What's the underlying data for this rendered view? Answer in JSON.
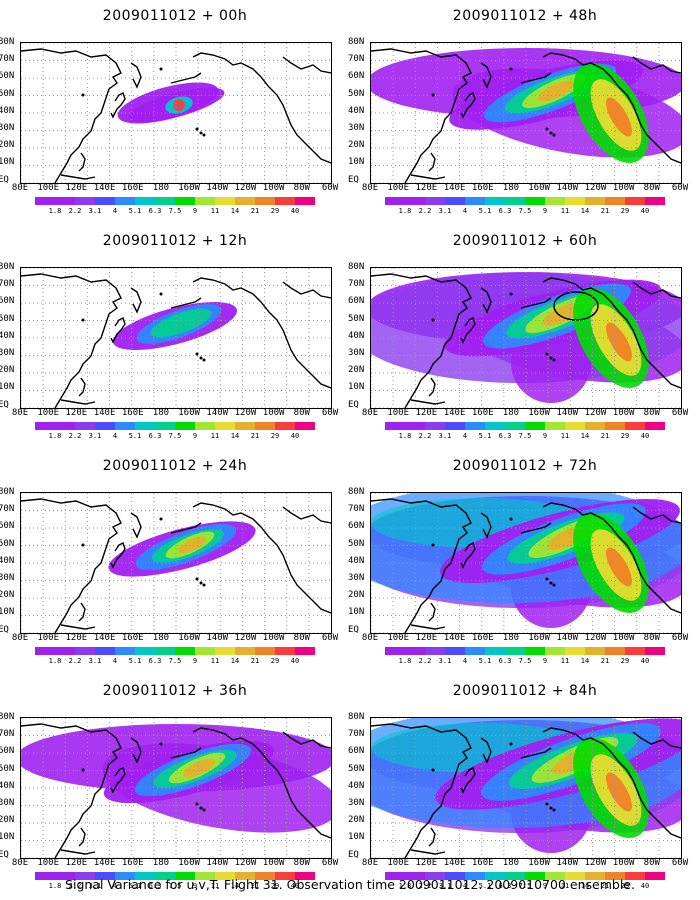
{
  "caption": "Signal Variance for u,v,T. Flight 31. Observation time 2009011012. 2009010700 ensemble.",
  "y_axis_labels": [
    "80N",
    "70N",
    "60N",
    "50N",
    "40N",
    "30N",
    "20N",
    "10N",
    "EQ"
  ],
  "x_axis_labels": [
    "80E",
    "100E",
    "120E",
    "140E",
    "160E",
    "180",
    "160W",
    "140W",
    "120W",
    "100W",
    "80W",
    "60W"
  ],
  "colorbar": {
    "labels": [
      "1.8",
      "2.2",
      "3.1",
      "4",
      "5.1",
      "6.3",
      "7.5",
      "9",
      "11",
      "14",
      "21",
      "29",
      "40"
    ],
    "colors": [
      "#a020f0",
      "#8c3cf0",
      "#4b4bff",
      "#2a8cff",
      "#00c8c8",
      "#00d28c",
      "#00dc00",
      "#a0e632",
      "#e6dc32",
      "#e6af2d",
      "#f08228",
      "#fa3c3c",
      "#f00082"
    ]
  },
  "panels": [
    {
      "title": "2009011012 + 00h",
      "lead_hours": 0,
      "intensity": 1
    },
    {
      "title": "2009011012 + 48h",
      "lead_hours": 48,
      "intensity": 5
    },
    {
      "title": "2009011012 + 12h",
      "lead_hours": 12,
      "intensity": 2
    },
    {
      "title": "2009011012 + 60h",
      "lead_hours": 60,
      "intensity": 6
    },
    {
      "title": "2009011012 + 24h",
      "lead_hours": 24,
      "intensity": 3
    },
    {
      "title": "2009011012 + 72h",
      "lead_hours": 72,
      "intensity": 7
    },
    {
      "title": "2009011012 + 36h",
      "lead_hours": 36,
      "intensity": 4
    },
    {
      "title": "2009011012 + 84h",
      "lead_hours": 84,
      "intensity": 8
    }
  ]
}
